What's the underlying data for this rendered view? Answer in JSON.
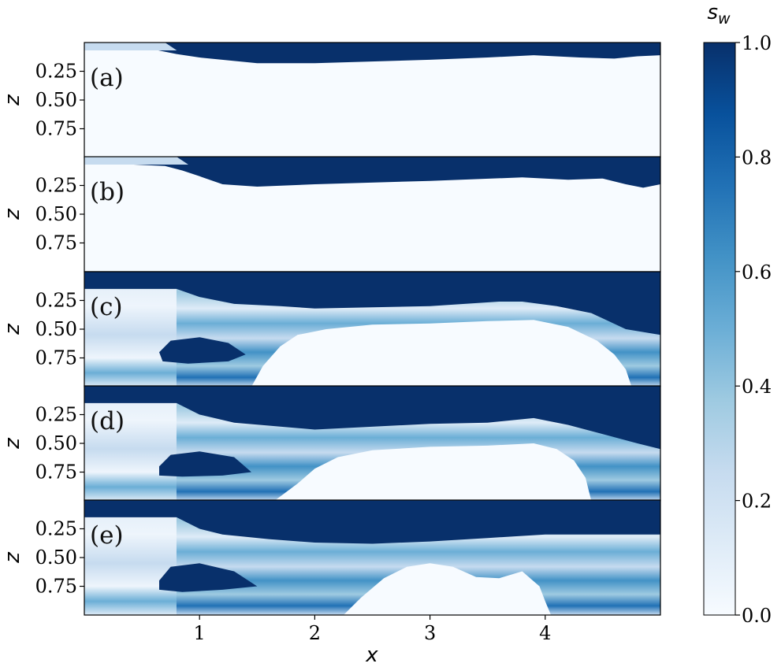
{
  "chart_data": {
    "type": "heatmap",
    "panels": [
      {
        "label": "(a)",
        "bottom_boundary": [
          [
            0.0,
            0.04
          ],
          [
            0.6,
            0.06
          ],
          [
            0.8,
            0.1
          ],
          [
            1.0,
            0.13
          ],
          [
            1.3,
            0.16
          ],
          [
            1.5,
            0.18
          ],
          [
            2.0,
            0.18
          ],
          [
            3.0,
            0.15
          ],
          [
            3.5,
            0.13
          ],
          [
            3.9,
            0.11
          ],
          [
            4.3,
            0.13
          ],
          [
            4.6,
            0.14
          ],
          [
            4.8,
            0.12
          ],
          [
            5.0,
            0.11
          ]
        ],
        "top_patch_x": [
          0.0,
          0.7
        ]
      },
      {
        "label": "(b)",
        "bottom_boundary": [
          [
            0.0,
            0.05
          ],
          [
            0.7,
            0.08
          ],
          [
            0.85,
            0.12
          ],
          [
            1.0,
            0.17
          ],
          [
            1.2,
            0.24
          ],
          [
            1.5,
            0.26
          ],
          [
            2.0,
            0.24
          ],
          [
            3.0,
            0.21
          ],
          [
            3.8,
            0.18
          ],
          [
            4.2,
            0.2
          ],
          [
            4.5,
            0.19
          ],
          [
            4.7,
            0.24
          ],
          [
            4.85,
            0.27
          ],
          [
            5.0,
            0.24
          ]
        ],
        "top_patch_x": [
          0.0,
          0.8
        ]
      },
      {
        "label": "(c)",
        "bottom_boundary": [
          [
            0.0,
            0.15
          ],
          [
            0.8,
            0.15
          ],
          [
            1.0,
            0.22
          ],
          [
            1.3,
            0.28
          ],
          [
            1.7,
            0.3
          ],
          [
            2.0,
            0.32
          ],
          [
            3.0,
            0.3
          ],
          [
            3.6,
            0.26
          ],
          [
            3.8,
            0.26
          ],
          [
            4.1,
            0.3
          ],
          [
            4.4,
            0.36
          ],
          [
            4.7,
            0.5
          ],
          [
            5.0,
            0.55
          ]
        ],
        "nonaqueous_region": [
          [
            1.45,
            1.0
          ],
          [
            1.55,
            0.82
          ],
          [
            1.7,
            0.65
          ],
          [
            1.85,
            0.55
          ],
          [
            2.1,
            0.5
          ],
          [
            2.5,
            0.46
          ],
          [
            3.0,
            0.45
          ],
          [
            3.5,
            0.43
          ],
          [
            3.9,
            0.42
          ],
          [
            4.2,
            0.48
          ],
          [
            4.45,
            0.6
          ],
          [
            4.6,
            0.72
          ],
          [
            4.7,
            0.85
          ],
          [
            4.75,
            1.0
          ]
        ],
        "lens": [
          [
            0.65,
            0.7
          ],
          [
            0.75,
            0.6
          ],
          [
            1.0,
            0.57
          ],
          [
            1.25,
            0.62
          ],
          [
            1.4,
            0.72
          ],
          [
            1.25,
            0.78
          ],
          [
            0.9,
            0.8
          ],
          [
            0.68,
            0.78
          ]
        ]
      },
      {
        "label": "(d)",
        "bottom_boundary": [
          [
            0.0,
            0.15
          ],
          [
            0.8,
            0.15
          ],
          [
            1.0,
            0.25
          ],
          [
            1.3,
            0.32
          ],
          [
            2.0,
            0.38
          ],
          [
            3.0,
            0.33
          ],
          [
            3.5,
            0.32
          ],
          [
            3.9,
            0.28
          ],
          [
            4.2,
            0.34
          ],
          [
            4.5,
            0.42
          ],
          [
            4.8,
            0.5
          ],
          [
            5.0,
            0.55
          ]
        ],
        "nonaqueous_region": [
          [
            1.65,
            1.0
          ],
          [
            1.85,
            0.85
          ],
          [
            2.0,
            0.72
          ],
          [
            2.2,
            0.62
          ],
          [
            2.5,
            0.56
          ],
          [
            3.0,
            0.53
          ],
          [
            3.5,
            0.52
          ],
          [
            3.9,
            0.5
          ],
          [
            4.1,
            0.55
          ],
          [
            4.25,
            0.65
          ],
          [
            4.35,
            0.8
          ],
          [
            4.4,
            1.0
          ]
        ],
        "lens": [
          [
            0.65,
            0.7
          ],
          [
            0.75,
            0.6
          ],
          [
            1.0,
            0.57
          ],
          [
            1.3,
            0.62
          ],
          [
            1.45,
            0.75
          ],
          [
            1.2,
            0.78
          ],
          [
            0.85,
            0.79
          ],
          [
            0.65,
            0.78
          ]
        ]
      },
      {
        "label": "(e)",
        "bottom_boundary": [
          [
            0.0,
            0.15
          ],
          [
            0.8,
            0.15
          ],
          [
            1.0,
            0.25
          ],
          [
            1.2,
            0.3
          ],
          [
            1.6,
            0.34
          ],
          [
            2.0,
            0.37
          ],
          [
            2.5,
            0.38
          ],
          [
            3.0,
            0.36
          ],
          [
            3.5,
            0.33
          ],
          [
            4.0,
            0.3
          ],
          [
            4.5,
            0.3
          ],
          [
            5.0,
            0.3
          ]
        ],
        "nonaqueous_region": [
          [
            2.25,
            1.0
          ],
          [
            2.4,
            0.85
          ],
          [
            2.6,
            0.68
          ],
          [
            2.8,
            0.58
          ],
          [
            3.0,
            0.55
          ],
          [
            3.2,
            0.58
          ],
          [
            3.4,
            0.67
          ],
          [
            3.6,
            0.68
          ],
          [
            3.8,
            0.62
          ],
          [
            3.95,
            0.75
          ],
          [
            4.0,
            0.88
          ],
          [
            4.05,
            1.0
          ]
        ],
        "lens": [
          [
            0.65,
            0.7
          ],
          [
            0.75,
            0.58
          ],
          [
            1.0,
            0.55
          ],
          [
            1.3,
            0.62
          ],
          [
            1.5,
            0.75
          ],
          [
            1.2,
            0.78
          ],
          [
            0.85,
            0.8
          ],
          [
            0.65,
            0.78
          ]
        ]
      }
    ],
    "xlabel": "x",
    "ylabel": "z",
    "xlim": [
      0,
      5
    ],
    "ylim": [
      0,
      1
    ],
    "y_inverted": true,
    "xticks": [
      1,
      2,
      3,
      4
    ],
    "yticks": [
      0.25,
      0.5,
      0.75
    ],
    "ytick_labels": [
      "0.25",
      "0.50",
      "0.75"
    ],
    "colorbar": {
      "label": "s_w",
      "label_text": "s",
      "label_sub": "w",
      "range": [
        0,
        1
      ],
      "ticks": [
        "0.0",
        "0.2",
        "0.4",
        "0.6",
        "0.8",
        "1.0"
      ],
      "colormap": "Blues",
      "color_low": "#f7fbff",
      "color_high": "#08306b"
    }
  }
}
